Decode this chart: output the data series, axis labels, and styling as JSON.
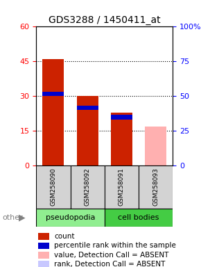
{
  "title": "GDS3288 / 1450411_at",
  "samples": [
    "GSM258090",
    "GSM258092",
    "GSM258091",
    "GSM258093"
  ],
  "groups": [
    "pseudopodia",
    "pseudopodia",
    "cell bodies",
    "cell bodies"
  ],
  "bar_colors_present_red": "#cc2200",
  "bar_colors_present_blue": "#0000cc",
  "bar_colors_absent_pink": "#ffb0b0",
  "bar_colors_absent_blue": "#c0c0ff",
  "count_values": [
    46,
    30,
    23,
    0
  ],
  "rank_values": [
    31,
    25,
    21,
    0
  ],
  "absent_pink_values": [
    0,
    0,
    0,
    17
  ],
  "absent_blue_values": [
    0,
    0,
    0,
    0
  ],
  "detection_calls": [
    "P",
    "P",
    "P",
    "A"
  ],
  "ylim_left": [
    0,
    60
  ],
  "ylim_right": [
    0,
    100
  ],
  "yticks_left": [
    0,
    15,
    30,
    45,
    60
  ],
  "yticks_right": [
    0,
    25,
    50,
    75,
    100
  ],
  "group_colors": {
    "pseudopodia": "#90ee90",
    "cell bodies": "#00cc00"
  },
  "group_bg_light": "#c8f0c8",
  "group_bg_dark": "#44cc44",
  "sample_bg_color": "#d3d3d3",
  "bar_width": 0.35,
  "title_fontsize": 10,
  "tick_fontsize": 8,
  "label_fontsize": 8,
  "legend_fontsize": 7.5
}
